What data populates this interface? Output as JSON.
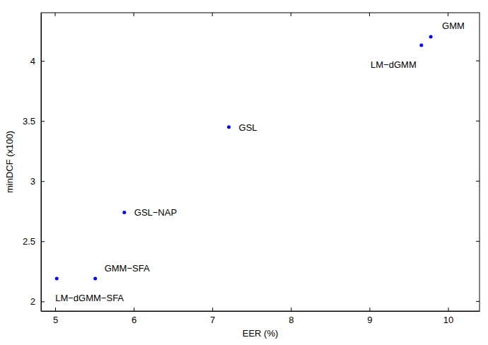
{
  "chart_data": {
    "type": "scatter",
    "x_label": "EER (%)",
    "y_label": "minDCF (x100)",
    "labels": [
      "GMM",
      "LM−dGMM",
      "GSL",
      "GSL−NAP",
      "GMM−SFA",
      "LM−dGMM−SFA"
    ],
    "x": [
      9.78,
      9.66,
      7.21,
      5.88,
      5.51,
      5.02
    ],
    "values": [
      4.2,
      4.13,
      3.45,
      2.74,
      2.19,
      2.19
    ],
    "color": "#0000ff",
    "marker": "dot",
    "xlim": [
      4.82,
      10.4
    ],
    "ylim": [
      1.92,
      4.4
    ],
    "xticks": [
      5,
      6,
      7,
      8,
      9,
      10
    ],
    "yticks": [
      2,
      2.5,
      3,
      3.5,
      4
    ],
    "grid": false
  }
}
